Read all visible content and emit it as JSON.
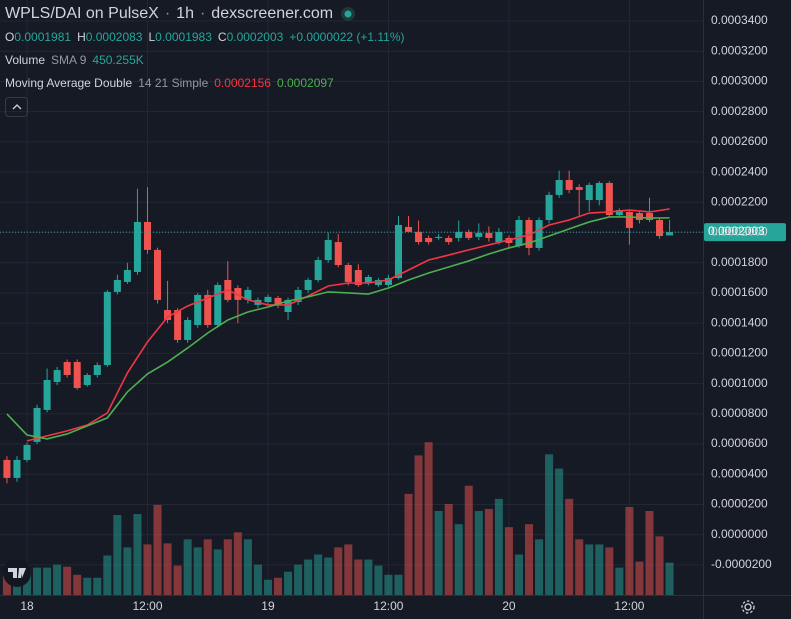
{
  "chart_data": {
    "type": "candlestick",
    "title": "WPLS/DAI on PulseX",
    "interval": "1h",
    "source": "dexscreener.com",
    "legend": {
      "ohlc": [
        {
          "key": "O",
          "value": "0.0001981"
        },
        {
          "key": "H",
          "value": "0.0002083"
        },
        {
          "key": "L",
          "value": "0.0001983"
        },
        {
          "key": "C",
          "value": "0.0002003"
        }
      ],
      "change": "+0.0000022 (+1.11%)",
      "volume_label": "Volume",
      "volume_sma": "SMA 9",
      "volume_sma_value": "450.255K",
      "ma_label": "Moving Average Double",
      "ma_params": "14 21 Simple"
    },
    "x": [
      -2,
      -1,
      0,
      1,
      2,
      3,
      4,
      5,
      6,
      7,
      8,
      9,
      10,
      11,
      12,
      13,
      14,
      15,
      16,
      17,
      18,
      19,
      20,
      21,
      22,
      23,
      24,
      25,
      26,
      27,
      28,
      29,
      30,
      31,
      32,
      33,
      34,
      35,
      36,
      37,
      38,
      39,
      40,
      41,
      42,
      43,
      44,
      45,
      46,
      47,
      48,
      49,
      50,
      51,
      52,
      53,
      54,
      55,
      56,
      57,
      58,
      59,
      60,
      61,
      62,
      63,
      64
    ],
    "open": [
      4.95e-05,
      3.76e-05,
      4.95e-05,
      6.14e-05,
      8.26e-05,
      0.0001011,
      0.0001143,
      0.0001143,
      9.91e-05,
      0.0001057,
      0.0001123,
      0.0001607,
      0.0001673,
      0.0001739,
      0.000207,
      0.0001885,
      0.0001487,
      0.0001487,
      0.0001289,
      0.0001388,
      0.0001587,
      0.0001388,
      0.0001686,
      0.0001633,
      0.0001554,
      0.0001521,
      0.000154,
      0.0001567,
      0.0001474,
      0.000154,
      0.000162,
      0.0001686,
      0.0001818,
      0.0001937,
      0.0001785,
      0.0001752,
      0.0001666,
      0.0001653,
      0.0001653,
      0.0001699,
      0.0002037,
      0.0002004,
      0.0001964,
      0.0001964,
      0.0001964,
      0.0001964,
      0.0002004,
      0.0001971,
      0.0001997,
      0.0001937,
      0.0001964,
      0.0001911,
      0.0002083,
      0.0001898,
      0.0002083,
      0.0002249,
      0.0002348,
      0.0002301,
      0.0002215,
      0.0002215,
      0.0002328,
      0.0002116,
      0.0002136,
      0.0002129,
      0.0002129,
      0.0002083,
      0.0001981
    ],
    "high": [
      5.2e-05,
      5.2e-05,
      6.1e-05,
      8.6e-05,
      0.00011,
      0.000111,
      0.000116,
      0.000116,
      0.000107,
      0.000114,
      0.000162,
      0.000172,
      0.00018,
      0.000229,
      0.00023,
      0.00019,
      0.000168,
      0.00015,
      0.000144,
      0.00016,
      0.000162,
      0.000167,
      0.000181,
      0.000165,
      0.000164,
      0.000157,
      0.000159,
      0.000158,
      0.000157,
      0.000164,
      0.00017,
      0.000184,
      0.0002,
      0.000199,
      0.00018,
      0.000179,
      0.000172,
      0.00017,
      0.000172,
      0.000211,
      0.000211,
      0.000208,
      0.000198,
      0.000199,
      0.000198,
      0.000208,
      0.000202,
      0.000206,
      0.000204,
      0.000203,
      0.000198,
      0.000211,
      0.00021,
      0.00021,
      0.000227,
      0.000241,
      0.000241,
      0.000232,
      0.000233,
      0.000234,
      0.000234,
      0.000216,
      0.000215,
      0.000214,
      0.000223,
      0.00021,
      0.0002083
    ],
    "low": [
      3.4e-05,
      3.5e-05,
      4.8e-05,
      6e-05,
      8.1e-05,
      9.9e-05,
      0.000104,
      9.6e-05,
      9.8e-05,
      0.000104,
      0.000111,
      0.000159,
      0.000166,
      0.000172,
      0.000186,
      0.000153,
      0.00014,
      0.000127,
      0.000127,
      0.000137,
      0.000137,
      0.000137,
      0.000154,
      0.00014,
      0.000153,
      0.00015,
      0.000152,
      0.00015,
      0.000142,
      0.000152,
      0.00016,
      0.000167,
      0.00018,
      0.000177,
      0.000165,
      0.000164,
      0.000165,
      0.000164,
      0.000164,
      0.000169,
      0.000202,
      0.000192,
      0.000192,
      0.000195,
      0.000192,
      0.000194,
      0.000195,
      0.000195,
      0.000194,
      0.000192,
      0.00019,
      0.00019,
      0.000185,
      0.000188,
      0.000206,
      0.000223,
      0.000226,
      0.000211,
      0.000214,
      0.000218,
      0.00021,
      0.00021,
      0.000192,
      0.000206,
      0.000207,
      0.000196,
      0.0001983
    ],
    "close": [
      3.76e-05,
      4.95e-05,
      5.94e-05,
      8.39e-05,
      0.0001024,
      0.000109,
      0.0001057,
      9.71e-05,
      0.0001057,
      0.0001123,
      0.0001607,
      0.0001686,
      0.0001752,
      0.000207,
      0.0001885,
      0.0001554,
      0.0001421,
      0.0001289,
      0.0001421,
      0.0001587,
      0.0001388,
      0.0001653,
      0.0001554,
      0.0001554,
      0.000162,
      0.0001554,
      0.0001574,
      0.0001521,
      0.0001554,
      0.000162,
      0.0001686,
      0.0001818,
      0.0001951,
      0.0001785,
      0.0001673,
      0.0001653,
      0.0001706,
      0.0001686,
      0.0001699,
      0.000205,
      0.0002004,
      0.0001937,
      0.0001937,
      0.0001971,
      0.0001937,
      0.0002004,
      0.0001964,
      0.0001997,
      0.0001964,
      0.0002004,
      0.0001931,
      0.0002083,
      0.0001898,
      0.0002083,
      0.0002249,
      0.0002348,
      0.0002282,
      0.0002282,
      0.0002315,
      0.0002328,
      0.0002116,
      0.0002149,
      0.000203,
      0.0002083,
      0.0002083,
      0.0001977,
      0.0002003
    ],
    "volume": [
      170,
      212,
      212,
      230,
      230,
      255,
      238,
      170,
      145,
      145,
      332,
      672,
      400,
      680,
      425,
      757,
      434,
      247,
      468,
      400,
      468,
      383,
      468,
      527,
      468,
      255,
      128,
      145,
      196,
      255,
      298,
      340,
      315,
      400,
      425,
      298,
      298,
      247,
      170,
      170,
      850,
      1173,
      1284,
      706,
      765,
      595,
      918,
      706,
      723,
      808,
      570,
      340,
      595,
      468,
      1182,
      1063,
      808,
      468,
      425,
      425,
      400,
      230,
      740,
      281,
      706,
      493,
      272
    ],
    "vlim": [
      0,
      5000
    ],
    "up_color": "#26a69a",
    "down_color": "#ef5350",
    "series": [
      {
        "color": "#f23645",
        "legend_value": "0.0002156",
        "x": [
          0,
          2,
          4,
          6,
          8,
          10,
          12,
          14,
          16,
          18,
          20,
          22,
          24,
          26,
          28,
          30,
          32,
          34,
          36,
          38,
          40,
          42,
          44,
          46,
          48,
          50,
          52,
          54,
          56,
          58,
          60,
          62,
          64
        ],
        "values": [
          6.21e-05,
          6.54e-05,
          6.87e-05,
          7.26e-05,
          8.06e-05,
          0.0001071,
          0.0001276,
          0.0001441,
          0.0001514,
          0.0001567,
          0.000162,
          0.0001554,
          0.0001521,
          0.0001521,
          0.000158,
          0.0001646,
          0.0001666,
          0.0001666,
          0.0001686,
          0.0001752,
          0.0001818,
          0.0001851,
          0.0001885,
          0.0001918,
          0.0001951,
          0.0001984,
          0.000205,
          0.0002083,
          0.0002129,
          0.0002136,
          0.0002149,
          0.0002136,
          0.0002156
        ]
      },
      {
        "color": "#4caf50",
        "legend_value": "0.0002097",
        "x": [
          -2,
          0,
          2,
          4,
          6,
          8,
          10,
          12,
          14,
          16,
          18,
          20,
          22,
          24,
          26,
          28,
          30,
          32,
          34,
          36,
          38,
          40,
          42,
          44,
          46,
          48,
          50,
          52,
          54,
          56,
          58,
          60,
          62,
          64
        ],
        "values": [
          7.99e-05,
          6.6e-05,
          6.34e-05,
          6.67e-05,
          7.2e-05,
          7.73e-05,
          9.45e-05,
          0.0001064,
          0.0001143,
          0.0001236,
          0.0001335,
          0.0001421,
          0.0001474,
          0.0001507,
          0.0001547,
          0.0001574,
          0.0001607,
          0.00016,
          0.0001593,
          0.0001633,
          0.0001686,
          0.0001732,
          0.0001772,
          0.0001812,
          0.0001858,
          0.0001898,
          0.0001931,
          0.0001977,
          0.0002024,
          0.000207,
          0.0002103,
          0.0002103,
          0.0002096,
          0.0002097
        ]
      }
    ],
    "last_price": 0.0002003,
    "xlim": [
      -2.69,
      67.33
    ],
    "xticks": [
      {
        "value": 0,
        "label": "18"
      },
      {
        "value": 12,
        "label": "12:00"
      },
      {
        "value": 24,
        "label": "19"
      },
      {
        "value": 36,
        "label": "12:00"
      },
      {
        "value": 48,
        "label": "20"
      },
      {
        "value": 60,
        "label": "12:00"
      }
    ],
    "ylim": [
      -3.99e-05,
      0.0003539
    ],
    "yticks": [
      {
        "value": 0.00034,
        "label": "0.0003400"
      },
      {
        "value": 0.00032,
        "label": "0.0003200"
      },
      {
        "value": 0.0003,
        "label": "0.0003000"
      },
      {
        "value": 0.00028,
        "label": "0.0002800"
      },
      {
        "value": 0.00026,
        "label": "0.0002600"
      },
      {
        "value": 0.00024,
        "label": "0.0002400"
      },
      {
        "value": 0.00022,
        "label": "0.0002200"
      },
      {
        "value": 0.0002,
        "label": "0.0002000"
      },
      {
        "value": 0.00018,
        "label": "0.0001800"
      },
      {
        "value": 0.00016,
        "label": "0.0001600"
      },
      {
        "value": 0.00014,
        "label": "0.0001400"
      },
      {
        "value": 0.00012,
        "label": "0.0001200"
      },
      {
        "value": 0.0001,
        "label": "0.0001000"
      },
      {
        "value": 8e-05,
        "label": "0.0000800"
      },
      {
        "value": 6e-05,
        "label": "0.0000600"
      },
      {
        "value": 4e-05,
        "label": "0.0000400"
      },
      {
        "value": 2e-05,
        "label": "0.0000200"
      },
      {
        "value": 0,
        "label": "0.0000000"
      },
      {
        "value": -2e-05,
        "label": "-0.0000200"
      }
    ],
    "grid": true
  }
}
